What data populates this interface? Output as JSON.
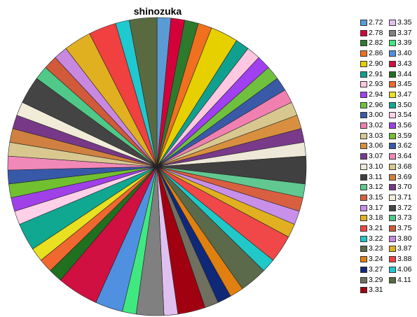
{
  "chart_data": {
    "type": "pie",
    "title": "shinozuka",
    "legend_position": "right",
    "categories": [
      "2.72",
      "2.78",
      "2.82",
      "2.86",
      "2.90",
      "2.91",
      "2.93",
      "2.94",
      "2.96",
      "3.00",
      "3.02",
      "3.03",
      "3.06",
      "3.07",
      "3.10",
      "3.11",
      "3.12",
      "3.15",
      "3.17",
      "3.18",
      "3.21",
      "3.22",
      "3.23",
      "3.24",
      "3.27",
      "3.29",
      "3.31",
      "3.35",
      "3.37",
      "3.39",
      "3.40",
      "3.43",
      "3.44",
      "3.45",
      "3.47",
      "3.50",
      "3.54",
      "3.56",
      "3.59",
      "3.62",
      "3.64",
      "3.68",
      "3.69",
      "3.70",
      "3.71",
      "3.72",
      "3.73",
      "3.75",
      "3.80",
      "3.87",
      "3.88",
      "4.06",
      "4.11"
    ],
    "colors": [
      "#5b9bd5",
      "#d4003a",
      "#2d7a2d",
      "#f07020",
      "#e6d000",
      "#10a090",
      "#ffc8e0",
      "#a040f0",
      "#70c040",
      "#3a5aa8",
      "#f080b0",
      "#d8c890",
      "#d89040",
      "#7a3a8a",
      "#eee8d8",
      "#404040",
      "#60c890",
      "#d86040",
      "#c890e8",
      "#e0b020",
      "#f04848",
      "#20c8c8",
      "#5a6a4a",
      "#e08010",
      "#102878",
      "#707060",
      "#a00010",
      "#e0c0f0",
      "#808080",
      "#40e880",
      "#5090e0",
      "#d01040",
      "#207020",
      "#f06830",
      "#e8e020",
      "#10a890",
      "#ffd0e8",
      "#a040e8",
      "#70c030",
      "#3858a8",
      "#f088b8",
      "#d8c890",
      "#d08040",
      "#783888",
      "#f0ecd8",
      "#444444",
      "#50c888",
      "#d05a3a",
      "#c888e0",
      "#e0b020",
      "#f04040",
      "#20c8d0",
      "#5a6a40"
    ],
    "values": [
      3.1,
      3.1,
      3.1,
      3.1,
      6.2,
      3.1,
      3.1,
      3.1,
      3.1,
      3.1,
      3.1,
      3.1,
      3.1,
      3.1,
      3.1,
      6.2,
      3.1,
      3.1,
      3.1,
      3.1,
      6.2,
      3.1,
      6.2,
      3.1,
      3.1,
      3.1,
      6.2,
      3.1,
      6.2,
      3.1,
      6.2,
      9.3,
      3.1,
      3.1,
      3.1,
      6.2,
      3.1,
      3.1,
      3.1,
      3.1,
      3.1,
      3.1,
      3.1,
      3.1,
      3.1,
      6.2,
      3.1,
      3.1,
      3.1,
      6.2,
      6.2,
      3.1,
      6.2
    ],
    "legend_columns": [
      [
        "2.72",
        "2.78",
        "2.82",
        "2.86",
        "2.90",
        "2.91",
        "2.93",
        "2.94",
        "2.96",
        "3.00",
        "3.02",
        "3.03",
        "3.06",
        "3.07",
        "3.10",
        "3.11",
        "3.12",
        "3.15",
        "3.17",
        "3.18",
        "3.21",
        "3.22",
        "3.23",
        "3.24",
        "3.27",
        "3.29",
        "3.31"
      ],
      [
        "3.35",
        "3.37",
        "3.39",
        "3.40",
        "3.43",
        "3.44",
        "3.45",
        "3.47",
        "3.50",
        "3.54",
        "3.56",
        "3.59",
        "3.62",
        "3.64",
        "3.68",
        "3.69",
        "3.70",
        "3.71",
        "3.72",
        "3.73",
        "3.75",
        "3.80",
        "3.87",
        "3.88",
        "4.06",
        "4.11"
      ]
    ]
  }
}
